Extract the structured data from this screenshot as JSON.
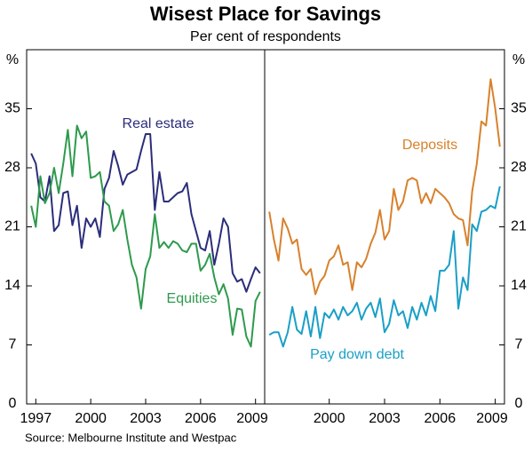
{
  "header": {
    "title": "Wisest Place for Savings",
    "subtitle": "Per cent of respondents",
    "source": "Source: Melbourne Institute and Westpac"
  },
  "chart_data": [
    {
      "type": "line",
      "y_label": "%",
      "x": [
        1996.75,
        1997,
        1997.25,
        1997.5,
        1997.75,
        1998,
        1998.25,
        1998.5,
        1998.75,
        1999,
        1999.25,
        1999.5,
        1999.75,
        2000,
        2000.25,
        2000.5,
        2000.75,
        2001,
        2001.25,
        2001.5,
        2001.75,
        2002,
        2002.25,
        2002.5,
        2002.75,
        2003,
        2003.25,
        2003.5,
        2003.75,
        2004,
        2004.25,
        2004.5,
        2004.75,
        2005,
        2005.25,
        2005.5,
        2005.75,
        2006,
        2006.25,
        2006.5,
        2006.75,
        2007,
        2007.25,
        2007.5,
        2007.75,
        2008,
        2008.25,
        2008.5,
        2008.75,
        2009,
        2009.25
      ],
      "xlim": [
        1996.5,
        2009.5
      ],
      "xticks": [
        1997,
        2000,
        2003,
        2006,
        2009
      ],
      "ylim": [
        0,
        42
      ],
      "yticks": [
        0,
        7,
        14,
        21,
        28,
        35
      ],
      "series": [
        {
          "name": "Real estate",
          "color": "#2b2d7a",
          "values": [
            29.7,
            28.5,
            24.5,
            24,
            27,
            20.5,
            21.2,
            25,
            25.2,
            21.2,
            23.5,
            18.5,
            22,
            21,
            22,
            19.8,
            25.5,
            26.8,
            30,
            28.2,
            26,
            27.2,
            27.5,
            27.8,
            30,
            32,
            32,
            23,
            27.5,
            24,
            24,
            24.5,
            25,
            25.2,
            26.2,
            22.5,
            20.5,
            18.5,
            18.2,
            20.5,
            16.5,
            19,
            22,
            21,
            15.5,
            14.5,
            14.8,
            13.3,
            14.8,
            16.2,
            15.5
          ]
        },
        {
          "name": "Equities",
          "color": "#2e9a4c",
          "values": [
            23.5,
            21,
            27,
            23.8,
            25,
            28,
            25,
            28.5,
            32.5,
            27,
            33,
            31.5,
            32.3,
            26.8,
            27,
            27.5,
            24,
            23.5,
            20.5,
            21.3,
            23,
            19.5,
            16.5,
            15,
            11.3,
            16,
            17.5,
            22.5,
            18.5,
            19.2,
            18.5,
            19.3,
            19,
            18.2,
            18,
            19,
            19,
            15.8,
            16.5,
            17.8,
            15,
            13,
            14.2,
            12.5,
            8.2,
            11.3,
            11.2,
            8,
            6.8,
            12.2,
            13.3
          ]
        }
      ]
    },
    {
      "type": "line",
      "y_label": "%",
      "x": [
        1996.75,
        1997,
        1997.25,
        1997.5,
        1997.75,
        1998,
        1998.25,
        1998.5,
        1998.75,
        1999,
        1999.25,
        1999.5,
        1999.75,
        2000,
        2000.25,
        2000.5,
        2000.75,
        2001,
        2001.25,
        2001.5,
        2001.75,
        2002,
        2002.25,
        2002.5,
        2002.75,
        2003,
        2003.25,
        2003.5,
        2003.75,
        2004,
        2004.25,
        2004.5,
        2004.75,
        2005,
        2005.25,
        2005.5,
        2005.75,
        2006,
        2006.25,
        2006.5,
        2006.75,
        2007,
        2007.25,
        2007.5,
        2007.75,
        2008,
        2008.25,
        2008.5,
        2008.75,
        2009,
        2009.25
      ],
      "xlim": [
        1996.5,
        2009.5
      ],
      "xticks": [
        2000,
        2003,
        2006,
        2009
      ],
      "ylim": [
        0,
        42
      ],
      "yticks": [
        0,
        7,
        14,
        21,
        28,
        35
      ],
      "series": [
        {
          "name": "Deposits",
          "color": "#d8812c",
          "values": [
            22.8,
            19.5,
            17,
            22,
            20.8,
            19,
            19.5,
            16,
            15.3,
            16,
            13,
            14.5,
            15.2,
            17,
            17.5,
            18.8,
            16.5,
            16.8,
            13.5,
            16.8,
            16.2,
            17.2,
            19,
            20.3,
            23,
            19.5,
            20.5,
            25.5,
            23,
            24,
            26.5,
            26.8,
            26.5,
            23.8,
            25,
            23.8,
            25.5,
            25,
            24.5,
            23.8,
            22.5,
            22,
            21.8,
            18.8,
            25.2,
            28.5,
            33.5,
            33,
            38.5,
            35,
            30.5
          ]
        },
        {
          "name": "Pay down debt",
          "color": "#1a9fc7",
          "values": [
            8.2,
            8.5,
            8.5,
            6.8,
            8.5,
            11.5,
            8.8,
            8.3,
            11,
            8,
            11.5,
            7.8,
            10.8,
            10.2,
            11.2,
            10,
            11.5,
            10.5,
            11,
            12,
            10,
            11.3,
            12,
            10.3,
            12.5,
            8.5,
            9.5,
            12.3,
            10.5,
            11,
            9,
            11.5,
            10,
            12,
            10.5,
            12.8,
            11,
            15.8,
            15.8,
            16.5,
            20.5,
            11.3,
            15,
            13.5,
            21.3,
            20.5,
            22.8,
            23,
            23.5,
            23.2,
            25.8
          ]
        }
      ]
    }
  ]
}
